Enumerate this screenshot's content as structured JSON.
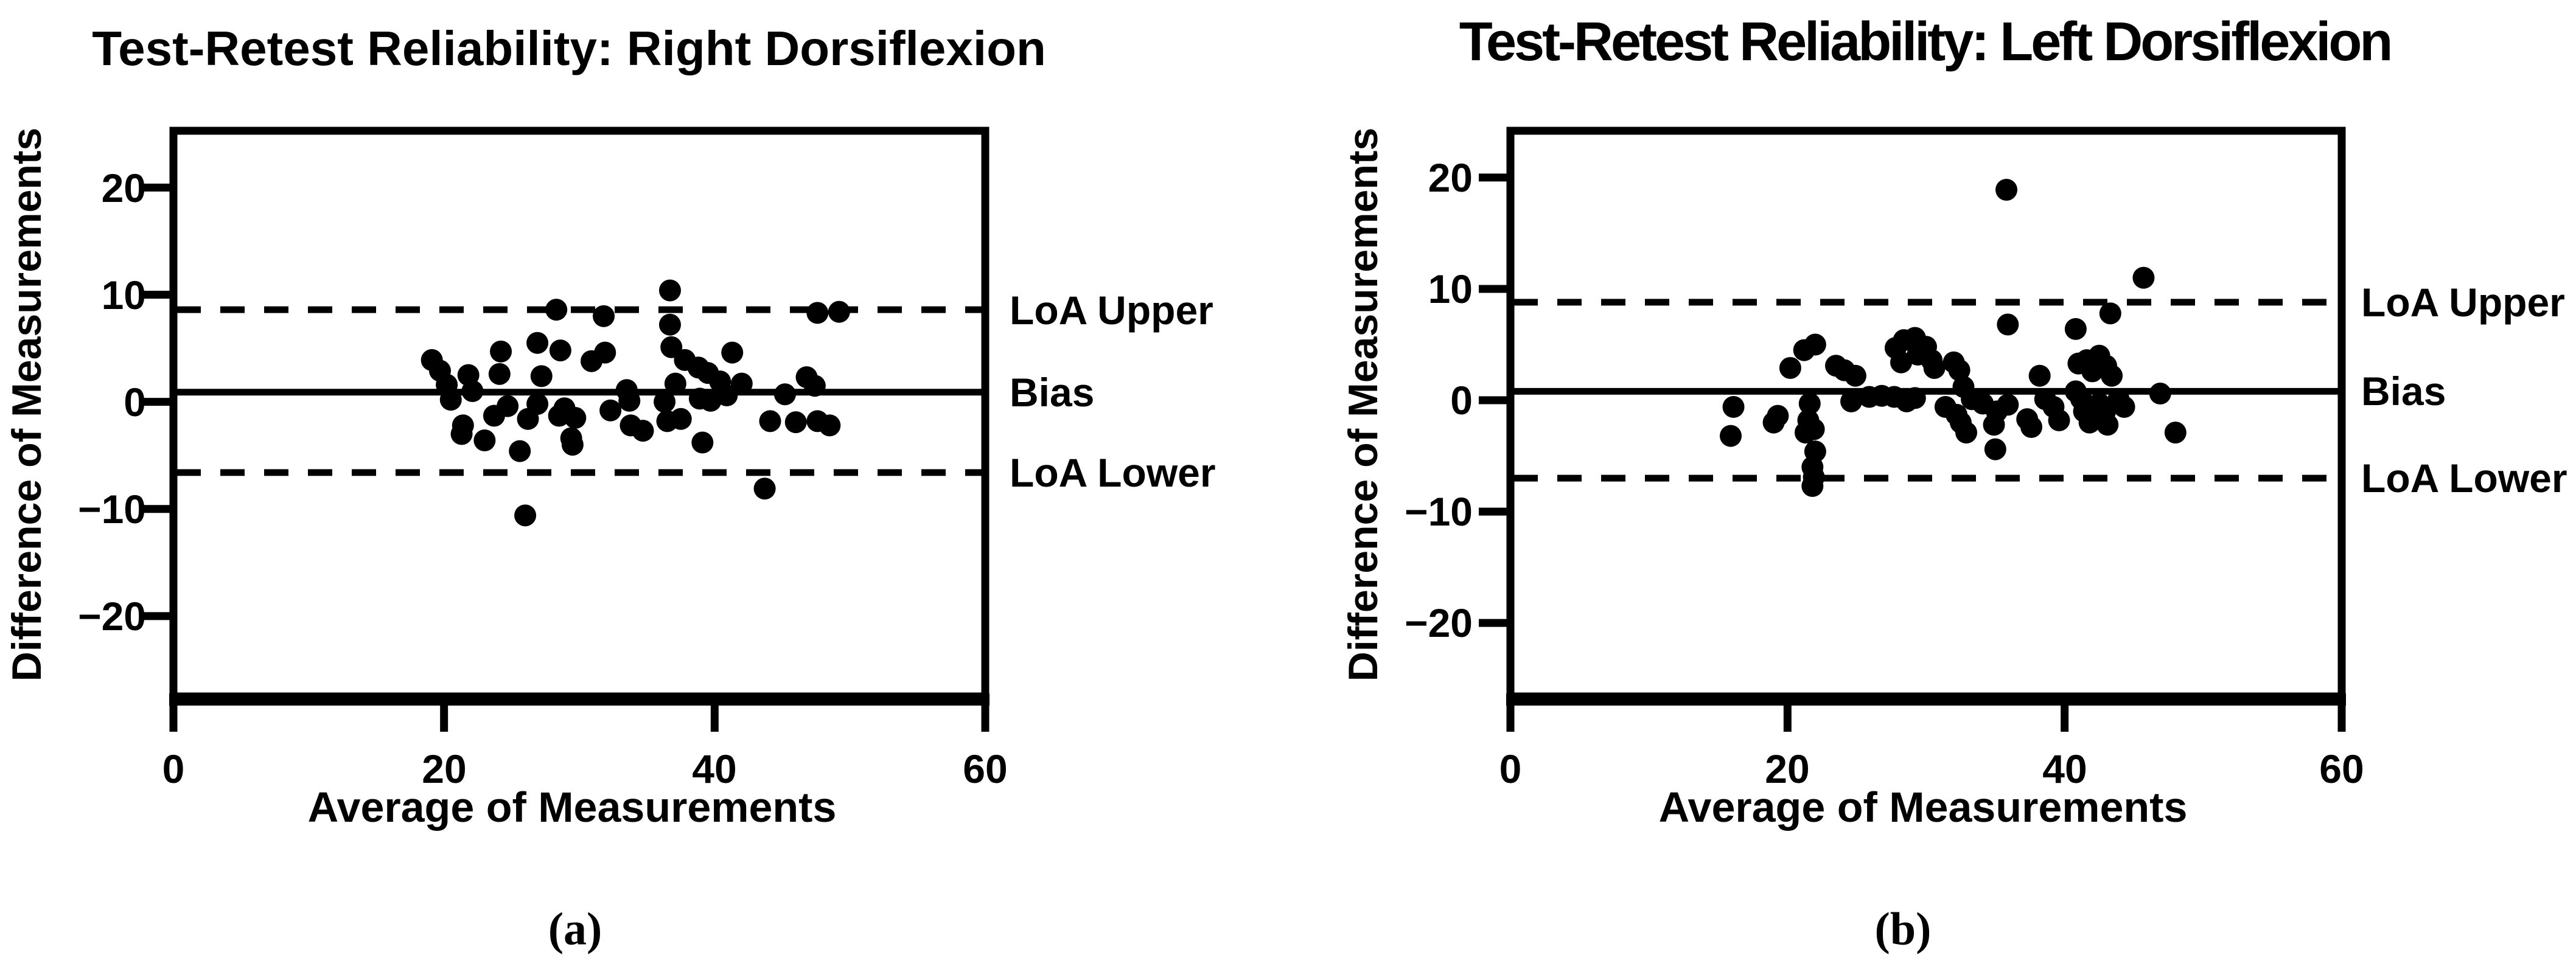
{
  "colors": {
    "foreground": "#000000",
    "background": "#ffffff",
    "marker": "#000000"
  },
  "chart_data": [
    {
      "type": "scatter",
      "panel": "a",
      "panel_label": "(a)",
      "title": "Test-Retest Reliability: Right Dorsiflexion",
      "xlabel": "Average of Measurements",
      "ylabel": "Difference of Measurements",
      "xlim": [
        0,
        60
      ],
      "ylim": [
        -27.5,
        25.3
      ],
      "xticks": [
        0,
        20,
        40,
        60
      ],
      "yticks": [
        20,
        10,
        0,
        -10,
        -20
      ],
      "xtick_labels": [
        "0",
        "20",
        "40",
        "60"
      ],
      "ytick_labels": [
        "20",
        "10",
        "0",
        "−10",
        "−20"
      ],
      "grid": false,
      "legend_position": "right-of-plot",
      "lines": [
        {
          "name": "LoA Upper",
          "value": 8.6,
          "style": "dashed"
        },
        {
          "name": "Bias",
          "value": 0.9,
          "style": "solid"
        },
        {
          "name": "LoA Lower",
          "value": -6.6,
          "style": "dashed"
        }
      ],
      "points": [
        [
          36.7,
          10.4
        ],
        [
          28.3,
          8.6
        ],
        [
          31.8,
          8.0
        ],
        [
          47.6,
          8.3
        ],
        [
          49.2,
          8.4
        ],
        [
          36.7,
          7.2
        ],
        [
          36.8,
          5.1
        ],
        [
          26.9,
          5.5
        ],
        [
          28.6,
          4.8
        ],
        [
          31.9,
          4.6
        ],
        [
          41.3,
          4.6
        ],
        [
          24.2,
          4.7
        ],
        [
          37.8,
          3.9
        ],
        [
          30.9,
          3.8
        ],
        [
          19.1,
          3.9
        ],
        [
          19.7,
          2.9
        ],
        [
          38.8,
          3.2
        ],
        [
          21.8,
          2.5
        ],
        [
          24.1,
          2.6
        ],
        [
          27.2,
          2.4
        ],
        [
          46.8,
          2.3
        ],
        [
          39.5,
          2.7
        ],
        [
          40.4,
          1.9
        ],
        [
          42.0,
          1.7
        ],
        [
          47.4,
          1.5
        ],
        [
          20.2,
          1.6
        ],
        [
          33.5,
          1.1
        ],
        [
          37.1,
          1.7
        ],
        [
          45.2,
          0.7
        ],
        [
          22.1,
          1.0
        ],
        [
          20.5,
          0.2
        ],
        [
          33.7,
          0.1
        ],
        [
          36.3,
          0.0
        ],
        [
          26.9,
          -0.2
        ],
        [
          38.9,
          0.3
        ],
        [
          39.7,
          0.1
        ],
        [
          40.9,
          0.6
        ],
        [
          24.7,
          -0.4
        ],
        [
          28.9,
          -0.6
        ],
        [
          32.3,
          -0.8
        ],
        [
          23.7,
          -1.3
        ],
        [
          26.2,
          -1.6
        ],
        [
          28.5,
          -1.3
        ],
        [
          29.7,
          -1.5
        ],
        [
          36.5,
          -1.8
        ],
        [
          37.5,
          -1.6
        ],
        [
          33.8,
          -2.2
        ],
        [
          34.7,
          -2.7
        ],
        [
          44.1,
          -1.8
        ],
        [
          46.0,
          -1.9
        ],
        [
          47.6,
          -1.8
        ],
        [
          48.5,
          -2.2
        ],
        [
          21.4,
          -2.2
        ],
        [
          21.3,
          -3.0
        ],
        [
          23.0,
          -3.6
        ],
        [
          25.6,
          -4.6
        ],
        [
          29.4,
          -3.4
        ],
        [
          29.5,
          -4.0
        ],
        [
          39.1,
          -3.8
        ],
        [
          43.7,
          -8.1
        ],
        [
          26.0,
          -10.6
        ]
      ]
    },
    {
      "type": "scatter",
      "panel": "b",
      "panel_label": "(b)",
      "title": "Test-Retest Reliability: Left Dorsiflexion",
      "xlabel": "Average of Measurements",
      "ylabel": "Difference of Measurements",
      "xlim": [
        0,
        60
      ],
      "ylim": [
        -26.6,
        24.2
      ],
      "xticks": [
        0,
        20,
        40,
        60
      ],
      "yticks": [
        20,
        10,
        0,
        -10,
        -20
      ],
      "xtick_labels": [
        "0",
        "20",
        "40",
        "60"
      ],
      "ytick_labels": [
        "20",
        "10",
        "0",
        "−10",
        "−20"
      ],
      "grid": false,
      "legend_position": "right-of-plot",
      "lines": [
        {
          "name": "LoA Upper",
          "value": 8.8,
          "style": "dashed"
        },
        {
          "name": "Bias",
          "value": 0.8,
          "style": "solid"
        },
        {
          "name": "LoA Lower",
          "value": -7.0,
          "style": "dashed"
        }
      ],
      "points": [
        [
          35.8,
          18.9
        ],
        [
          45.7,
          11.0
        ],
        [
          43.3,
          7.8
        ],
        [
          35.9,
          6.8
        ],
        [
          40.8,
          6.4
        ],
        [
          22.0,
          5.0
        ],
        [
          21.2,
          4.5
        ],
        [
          20.2,
          2.9
        ],
        [
          23.5,
          3.1
        ],
        [
          24.1,
          2.7
        ],
        [
          24.9,
          2.2
        ],
        [
          27.8,
          4.7
        ],
        [
          28.4,
          5.4
        ],
        [
          29.2,
          5.6
        ],
        [
          30.0,
          4.8
        ],
        [
          28.2,
          3.4
        ],
        [
          29.4,
          4.1
        ],
        [
          30.4,
          3.6
        ],
        [
          30.6,
          2.9
        ],
        [
          32.0,
          3.4
        ],
        [
          32.4,
          2.7
        ],
        [
          32.7,
          1.2
        ],
        [
          33.3,
          0.1
        ],
        [
          34.1,
          -0.3
        ],
        [
          38.2,
          2.2
        ],
        [
          38.6,
          0.1
        ],
        [
          39.2,
          -0.6
        ],
        [
          37.3,
          -1.7
        ],
        [
          35.1,
          -1.0
        ],
        [
          35.9,
          -0.4
        ],
        [
          34.9,
          -2.2
        ],
        [
          32.5,
          -2.0
        ],
        [
          32.9,
          -2.9
        ],
        [
          35.0,
          -4.4
        ],
        [
          37.6,
          -2.4
        ],
        [
          39.6,
          -1.8
        ],
        [
          41.0,
          3.3
        ],
        [
          41.6,
          3.6
        ],
        [
          42.0,
          2.6
        ],
        [
          42.5,
          4.0
        ],
        [
          43.0,
          3.1
        ],
        [
          43.4,
          2.2
        ],
        [
          40.8,
          0.8
        ],
        [
          41.2,
          0.1
        ],
        [
          41.4,
          -1.0
        ],
        [
          41.8,
          -2.0
        ],
        [
          42.5,
          -0.3
        ],
        [
          42.9,
          -1.1
        ],
        [
          43.1,
          -2.2
        ],
        [
          43.9,
          0.1
        ],
        [
          44.3,
          -0.6
        ],
        [
          46.9,
          0.6
        ],
        [
          48.0,
          -2.9
        ],
        [
          16.1,
          -0.6
        ],
        [
          15.9,
          -3.2
        ],
        [
          19.3,
          -1.4
        ],
        [
          19.0,
          -2.0
        ],
        [
          21.6,
          -0.3
        ],
        [
          21.5,
          -1.8
        ],
        [
          21.3,
          -2.9
        ],
        [
          21.9,
          -2.6
        ],
        [
          22.0,
          -4.6
        ],
        [
          21.8,
          -6.0
        ],
        [
          21.9,
          -6.9
        ],
        [
          21.8,
          -7.7
        ],
        [
          24.6,
          -0.1
        ],
        [
          25.9,
          0.3
        ],
        [
          26.8,
          0.4
        ],
        [
          27.7,
          0.3
        ],
        [
          28.6,
          -0.1
        ],
        [
          29.2,
          0.2
        ],
        [
          31.4,
          -0.6
        ],
        [
          32.2,
          -1.3
        ]
      ]
    }
  ]
}
